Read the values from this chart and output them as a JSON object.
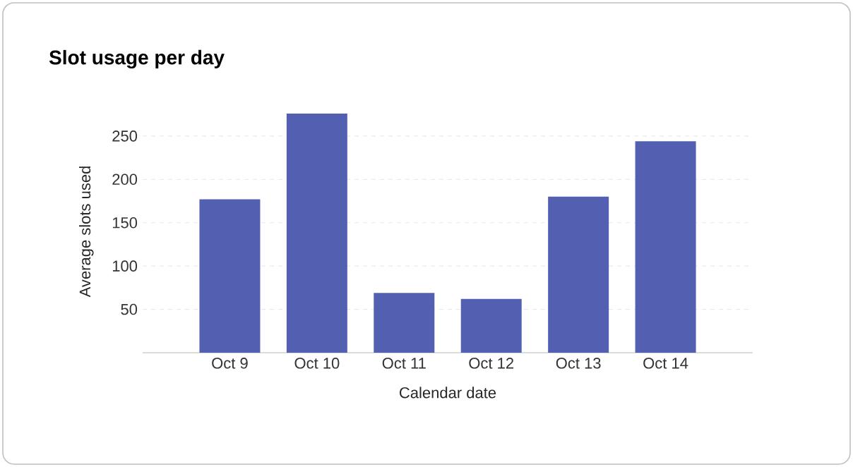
{
  "chart_data": {
    "type": "bar",
    "title": "Slot usage per day",
    "xlabel": "Calendar date",
    "ylabel": "Average slots used",
    "categories": [
      "Oct 9",
      "Oct 10",
      "Oct 11",
      "Oct 12",
      "Oct 13",
      "Oct 14"
    ],
    "values": [
      177,
      276,
      69,
      62,
      180,
      244
    ],
    "color": "#5360b2",
    "ylim": [
      0,
      280
    ],
    "yticks": [
      50,
      100,
      150,
      200,
      250
    ],
    "grid": "y"
  }
}
